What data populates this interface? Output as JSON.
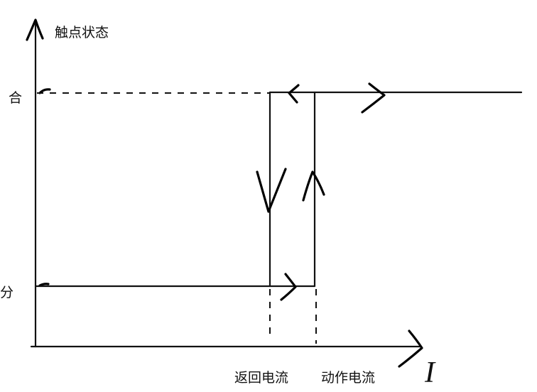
{
  "diagram": {
    "y_axis_label": "触点状态",
    "x_axis_label": "I",
    "state_closed": "合",
    "state_open": "分",
    "return_current_label": "返回电流",
    "pickup_current_label": "动作电流"
  }
}
